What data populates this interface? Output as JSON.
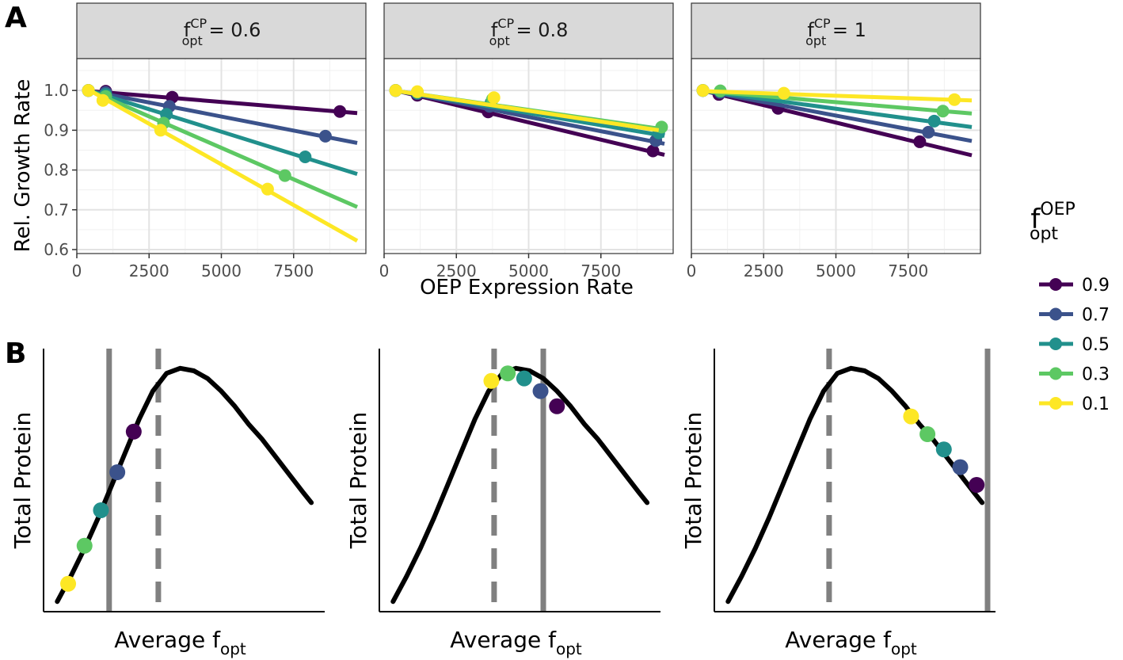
{
  "figure": {
    "panel_labels": [
      "A",
      "B"
    ],
    "shared_x_label": "OEP Expression Rate",
    "strip_var": "f",
    "strip_sup": "CP",
    "strip_sub": "opt",
    "legend": {
      "title_main": "f",
      "title_sup": "OEP",
      "title_sub": "opt",
      "items": [
        {
          "label": "0.9",
          "color": "#440154"
        },
        {
          "label": "0.7",
          "color": "#3b528b"
        },
        {
          "label": "0.5",
          "color": "#21908c"
        },
        {
          "label": "0.3",
          "color": "#5dc863"
        },
        {
          "label": "0.1",
          "color": "#fde725"
        }
      ]
    }
  },
  "chart_data": [
    {
      "type": "scatter",
      "panel": "A",
      "facet_value": "0.6",
      "ylabel": "Rel. Growth Rate",
      "xlim": [
        0,
        10000
      ],
      "ylim": [
        0.59,
        1.08
      ],
      "x_ticks": [
        0,
        2500,
        5000,
        7500
      ],
      "y_ticks": [
        "0.6",
        "0.7",
        "0.8",
        "0.9",
        "1.0"
      ],
      "grid": true,
      "series": [
        {
          "legend_value": "0.9",
          "color": "#440154",
          "points": [
            [
              400,
              1.0
            ],
            [
              1000,
              0.998
            ],
            [
              3300,
              0.983
            ],
            [
              9100,
              0.947
            ]
          ],
          "fit": [
            [
              500,
              0.998
            ],
            [
              9700,
              0.943
            ]
          ]
        },
        {
          "legend_value": "0.7",
          "color": "#3b528b",
          "points": [
            [
              400,
              1.0
            ],
            [
              1000,
              0.995
            ],
            [
              3200,
              0.96
            ],
            [
              8600,
              0.885
            ]
          ],
          "fit": [
            [
              500,
              0.998
            ],
            [
              9700,
              0.868
            ]
          ]
        },
        {
          "legend_value": "0.5",
          "color": "#21908c",
          "points": [
            [
              400,
              1.0
            ],
            [
              1000,
              0.99
            ],
            [
              3100,
              0.94
            ],
            [
              7900,
              0.833
            ]
          ],
          "fit": [
            [
              500,
              0.998
            ],
            [
              9700,
              0.79
            ]
          ]
        },
        {
          "legend_value": "0.3",
          "color": "#5dc863",
          "points": [
            [
              400,
              1.0
            ],
            [
              1000,
              0.985
            ],
            [
              3000,
              0.918
            ],
            [
              7200,
              0.786
            ]
          ],
          "fit": [
            [
              500,
              0.998
            ],
            [
              9700,
              0.707
            ]
          ]
        },
        {
          "legend_value": "0.1",
          "color": "#fde725",
          "points": [
            [
              400,
              1.0
            ],
            [
              900,
              0.975
            ],
            [
              2900,
              0.9
            ],
            [
              6600,
              0.752
            ]
          ],
          "fit": [
            [
              500,
              0.998
            ],
            [
              9700,
              0.622
            ]
          ]
        }
      ]
    },
    {
      "type": "scatter",
      "panel": "A",
      "facet_value": "0.8",
      "xlim": [
        0,
        10000
      ],
      "ylim": [
        0.59,
        1.08
      ],
      "x_ticks": [
        0,
        2500,
        5000,
        7500
      ],
      "grid": true,
      "series": [
        {
          "legend_value": "0.9",
          "color": "#440154",
          "points": [
            [
              400,
              1.0
            ],
            [
              1150,
              0.988
            ],
            [
              3600,
              0.946
            ],
            [
              9300,
              0.848
            ]
          ],
          "fit": [
            [
              500,
              0.998
            ],
            [
              9700,
              0.838
            ]
          ]
        },
        {
          "legend_value": "0.7",
          "color": "#3b528b",
          "points": [
            [
              400,
              1.0
            ],
            [
              1150,
              0.992
            ],
            [
              3650,
              0.96
            ],
            [
              9400,
              0.874
            ]
          ],
          "fit": [
            [
              500,
              0.998
            ],
            [
              9700,
              0.866
            ]
          ]
        },
        {
          "legend_value": "0.5",
          "color": "#21908c",
          "points": [
            [
              400,
              1.0
            ],
            [
              1150,
              0.994
            ],
            [
              3700,
              0.97
            ],
            [
              9500,
              0.893
            ]
          ],
          "fit": [
            [
              500,
              0.998
            ],
            [
              9700,
              0.886
            ]
          ]
        },
        {
          "legend_value": "0.3",
          "color": "#5dc863",
          "points": [
            [
              400,
              1.0
            ],
            [
              1150,
              0.996
            ],
            [
              3750,
              0.978
            ],
            [
              9600,
              0.908
            ]
          ],
          "fit": [
            [
              500,
              0.998
            ],
            [
              9700,
              0.902
            ]
          ]
        },
        {
          "legend_value": "0.1",
          "color": "#fde725",
          "points": [
            [
              400,
              1.0
            ],
            [
              1150,
              0.997
            ],
            [
              3800,
              0.982
            ]
          ],
          "fit": [
            [
              500,
              0.998
            ],
            [
              9500,
              0.9
            ]
          ]
        }
      ]
    },
    {
      "type": "scatter",
      "panel": "A",
      "facet_value": "1",
      "xlim": [
        0,
        10000
      ],
      "ylim": [
        0.59,
        1.08
      ],
      "x_ticks": [
        0,
        2500,
        5000,
        7500
      ],
      "grid": true,
      "series": [
        {
          "legend_value": "0.9",
          "color": "#440154",
          "points": [
            [
              400,
              1.0
            ],
            [
              950,
              0.99
            ],
            [
              3000,
              0.955
            ],
            [
              7900,
              0.871
            ]
          ],
          "fit": [
            [
              500,
              0.998
            ],
            [
              9700,
              0.837
            ]
          ]
        },
        {
          "legend_value": "0.7",
          "color": "#3b528b",
          "points": [
            [
              400,
              1.0
            ],
            [
              1000,
              0.995
            ],
            [
              8200,
              0.895
            ]
          ],
          "fit": [
            [
              500,
              0.998
            ],
            [
              9700,
              0.873
            ]
          ]
        },
        {
          "legend_value": "0.5",
          "color": "#21908c",
          "points": [
            [
              400,
              1.0
            ],
            [
              1000,
              0.998
            ],
            [
              8400,
              0.923
            ]
          ],
          "fit": [
            [
              500,
              0.998
            ],
            [
              9700,
              0.908
            ]
          ]
        },
        {
          "legend_value": "0.3",
          "color": "#5dc863",
          "points": [
            [
              400,
              1.0
            ],
            [
              1000,
              0.999
            ],
            [
              8700,
              0.948
            ]
          ],
          "fit": [
            [
              500,
              0.998
            ],
            [
              9700,
              0.942
            ]
          ]
        },
        {
          "legend_value": "0.1",
          "color": "#fde725",
          "points": [
            [
              400,
              1.0
            ],
            [
              3200,
              0.993
            ],
            [
              9100,
              0.977
            ]
          ],
          "fit": [
            [
              500,
              0.998
            ],
            [
              9700,
              0.975
            ]
          ]
        }
      ]
    },
    {
      "type": "line",
      "panel": "B",
      "ylabel": "Total Protein",
      "xlabel_main": "Average f",
      "xlabel_sub": "opt",
      "xlim": [
        0,
        1
      ],
      "ylim": [
        0,
        1
      ],
      "curve": [
        [
          0.05,
          0.04
        ],
        [
          0.1,
          0.14
        ],
        [
          0.15,
          0.25
        ],
        [
          0.2,
          0.37
        ],
        [
          0.25,
          0.5
        ],
        [
          0.3,
          0.63
        ],
        [
          0.35,
          0.76
        ],
        [
          0.4,
          0.87
        ],
        [
          0.45,
          0.94
        ],
        [
          0.5,
          0.96
        ],
        [
          0.55,
          0.95
        ],
        [
          0.6,
          0.92
        ],
        [
          0.65,
          0.87
        ],
        [
          0.7,
          0.81
        ],
        [
          0.75,
          0.74
        ],
        [
          0.8,
          0.68
        ],
        [
          0.85,
          0.61
        ],
        [
          0.9,
          0.54
        ],
        [
          0.95,
          0.47
        ],
        [
          0.98,
          0.43
        ]
      ],
      "solid_vline": 0.24,
      "dashed_vline": 0.42,
      "points": [
        {
          "legend_value": "0.1",
          "x": 0.09,
          "y": 0.11,
          "color": "#fde725"
        },
        {
          "legend_value": "0.3",
          "x": 0.15,
          "y": 0.26,
          "color": "#5dc863"
        },
        {
          "legend_value": "0.5",
          "x": 0.21,
          "y": 0.4,
          "color": "#21908c"
        },
        {
          "legend_value": "0.7",
          "x": 0.27,
          "y": 0.55,
          "color": "#3b528b"
        },
        {
          "legend_value": "0.9",
          "x": 0.33,
          "y": 0.71,
          "color": "#440154"
        }
      ]
    },
    {
      "type": "line",
      "panel": "B",
      "ylabel": "Total Protein",
      "xlabel_main": "Average f",
      "xlabel_sub": "opt",
      "xlim": [
        0,
        1
      ],
      "ylim": [
        0,
        1
      ],
      "curve": [
        [
          0.05,
          0.04
        ],
        [
          0.1,
          0.14
        ],
        [
          0.15,
          0.25
        ],
        [
          0.2,
          0.37
        ],
        [
          0.25,
          0.5
        ],
        [
          0.3,
          0.63
        ],
        [
          0.35,
          0.76
        ],
        [
          0.4,
          0.87
        ],
        [
          0.45,
          0.94
        ],
        [
          0.5,
          0.96
        ],
        [
          0.55,
          0.95
        ],
        [
          0.6,
          0.92
        ],
        [
          0.65,
          0.87
        ],
        [
          0.7,
          0.81
        ],
        [
          0.75,
          0.74
        ],
        [
          0.8,
          0.68
        ],
        [
          0.85,
          0.61
        ],
        [
          0.9,
          0.54
        ],
        [
          0.95,
          0.47
        ],
        [
          0.98,
          0.43
        ]
      ],
      "solid_vline": 0.6,
      "dashed_vline": 0.42,
      "points": [
        {
          "legend_value": "0.1",
          "x": 0.41,
          "y": 0.91,
          "color": "#fde725"
        },
        {
          "legend_value": "0.3",
          "x": 0.47,
          "y": 0.94,
          "color": "#5dc863"
        },
        {
          "legend_value": "0.5",
          "x": 0.53,
          "y": 0.92,
          "color": "#21908c"
        },
        {
          "legend_value": "0.7",
          "x": 0.59,
          "y": 0.87,
          "color": "#3b528b"
        },
        {
          "legend_value": "0.9",
          "x": 0.65,
          "y": 0.81,
          "color": "#440154"
        }
      ]
    },
    {
      "type": "line",
      "panel": "B",
      "ylabel": "Total Protein",
      "xlabel_main": "Average f",
      "xlabel_sub": "opt",
      "xlim": [
        0,
        1
      ],
      "ylim": [
        0,
        1
      ],
      "curve": [
        [
          0.05,
          0.04
        ],
        [
          0.1,
          0.14
        ],
        [
          0.15,
          0.25
        ],
        [
          0.2,
          0.37
        ],
        [
          0.25,
          0.5
        ],
        [
          0.3,
          0.63
        ],
        [
          0.35,
          0.76
        ],
        [
          0.4,
          0.87
        ],
        [
          0.45,
          0.94
        ],
        [
          0.5,
          0.96
        ],
        [
          0.55,
          0.95
        ],
        [
          0.6,
          0.92
        ],
        [
          0.65,
          0.87
        ],
        [
          0.7,
          0.81
        ],
        [
          0.75,
          0.74
        ],
        [
          0.8,
          0.68
        ],
        [
          0.85,
          0.61
        ],
        [
          0.9,
          0.54
        ],
        [
          0.95,
          0.47
        ],
        [
          0.98,
          0.43
        ]
      ],
      "solid_vline": 1.0,
      "dashed_vline": 0.42,
      "points": [
        {
          "legend_value": "0.1",
          "x": 0.72,
          "y": 0.77,
          "color": "#fde725"
        },
        {
          "legend_value": "0.3",
          "x": 0.78,
          "y": 0.7,
          "color": "#5dc863"
        },
        {
          "legend_value": "0.5",
          "x": 0.84,
          "y": 0.64,
          "color": "#21908c"
        },
        {
          "legend_value": "0.7",
          "x": 0.9,
          "y": 0.57,
          "color": "#3b528b"
        },
        {
          "legend_value": "0.9",
          "x": 0.96,
          "y": 0.5,
          "color": "#440154"
        }
      ]
    }
  ]
}
